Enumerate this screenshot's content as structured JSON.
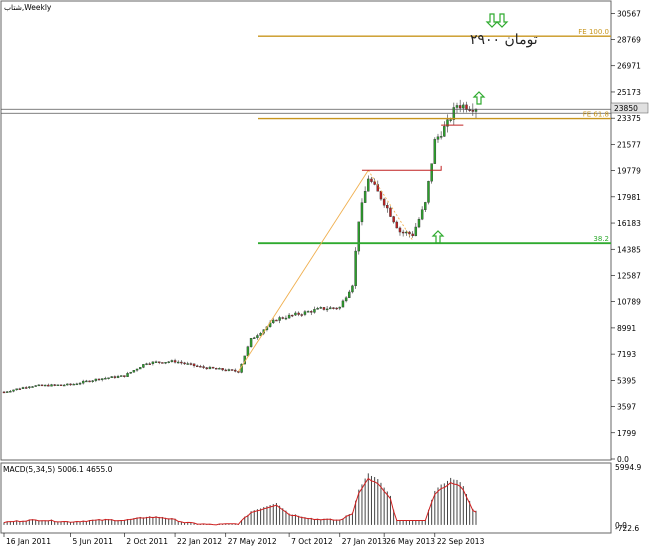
{
  "chart_data": {
    "type": "candlestick",
    "symbol": "شتاب,Weekly",
    "y_ticks": [
      "30567",
      "28769",
      "26971",
      "25173",
      "23375",
      "21577",
      "19779",
      "17981",
      "16183",
      "14385",
      "12587",
      "10789",
      "8991",
      "7193",
      "5395",
      "3597",
      "1799",
      "0.0"
    ],
    "ylim": [
      0,
      31000
    ],
    "x_tick_labels": [
      "16 Jan 2011",
      "5 Jun 2011",
      "2 Oct 2011",
      "22 Jan 2012",
      "27 May 2012",
      "7 Oct 2012",
      "27 Jan 2013",
      "26 May 2013",
      "22 Sep 2013"
    ],
    "price_series": [
      {
        "date": "16 Jan 2011",
        "close": 4600
      },
      {
        "date": "5 Jun 2011",
        "close": 5100
      },
      {
        "date": "2 Oct 2011",
        "close": 5700
      },
      {
        "date": "22 Jan 2012",
        "close": 6700
      },
      {
        "date": "27 May 2012",
        "close": 6100
      },
      {
        "date": "7 Oct 2012",
        "close": 8800
      },
      {
        "date": "27 Jan 2013",
        "close": 11200
      },
      {
        "date": "26 May 2013",
        "close": 17600
      },
      {
        "date": "22 Sep 2013",
        "close": 24100
      }
    ],
    "current_price_label": "23850",
    "levels": [
      {
        "label": "FE 100.0",
        "value": 29000,
        "color": "#c8961e"
      },
      {
        "label": "FE 61.8",
        "value": 23350,
        "color": "#c8961e"
      },
      {
        "label": "38.2",
        "value": 14800,
        "color": "#2eaa2e"
      }
    ],
    "annotation_text": "تومان ۲۹۰۰",
    "macd": {
      "label": "MACD(5,34,5) 5006.1 4655.0",
      "y_ticks": [
        "5994.9",
        "0.0",
        "-722.6"
      ],
      "ylim": [
        -722.6,
        5994.9
      ]
    }
  }
}
